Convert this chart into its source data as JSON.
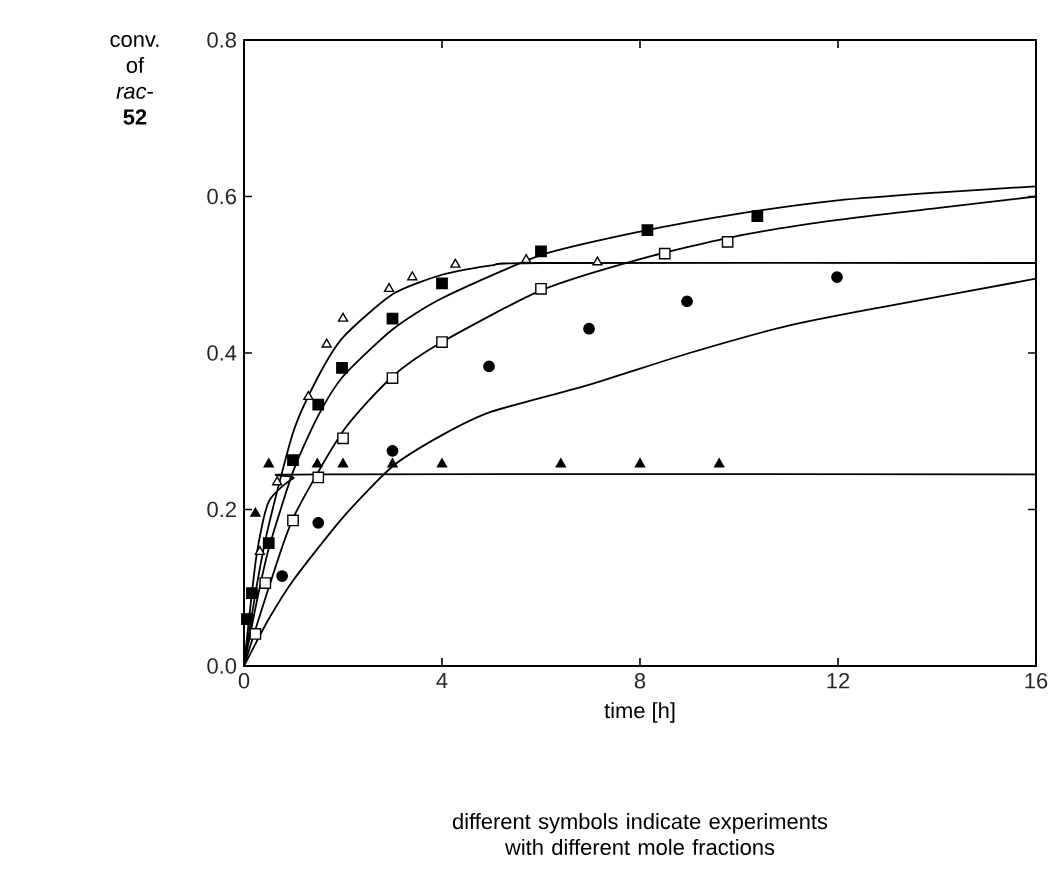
{
  "chart_data": {
    "type": "scatter",
    "ylabel": "conv. of *rac*-**52**",
    "xlabel": "time [h]",
    "annotations": [
      "different symbols indicate experiments with different mole fractions"
    ],
    "xlim": [
      0,
      16
    ],
    "xticks": [
      0,
      4,
      8,
      12,
      16
    ],
    "ylim": [
      0,
      0.8
    ],
    "yticks": [
      {
        "value": 0,
        "label": "0.0"
      },
      {
        "value": 0.2,
        "label": "0.2"
      },
      {
        "value": 0.4,
        "label": "0.4"
      },
      {
        "value": 0.6,
        "label": "0.6"
      },
      {
        "value": 0.8,
        "label": "0.8"
      }
    ],
    "grid": false,
    "series": [
      {
        "marker": "triangle",
        "color": "#ffffff",
        "x": [
          0.32,
          0.67,
          1.3,
          1.67,
          2.0,
          2.93,
          3.4,
          4.27,
          5.7,
          7.14
        ],
        "values": [
          0.146,
          0.235,
          0.344,
          0.411,
          0.444,
          0.482,
          0.497,
          0.513,
          0.519,
          0.516
        ]
      },
      {
        "marker": "square",
        "color": "#000000",
        "x": [
          0.06,
          0.16,
          0.5,
          0.99,
          1.5,
          1.98,
          3.0,
          4.0,
          6.0,
          8.15,
          10.37
        ],
        "values": [
          0.06,
          0.093,
          0.157,
          0.263,
          0.334,
          0.381,
          0.444,
          0.489,
          0.53,
          0.557,
          0.575
        ]
      },
      {
        "marker": "square",
        "color": "#ffffff",
        "x": [
          0.23,
          0.43,
          0.99,
          1.5,
          2.0,
          3.0,
          4.0,
          6.0,
          8.5,
          9.77
        ],
        "values": [
          0.041,
          0.106,
          0.186,
          0.241,
          0.291,
          0.368,
          0.414,
          0.482,
          0.527,
          0.542
        ]
      },
      {
        "marker": "circle",
        "color": "#000000",
        "x": [
          0.77,
          1.5,
          3.0,
          4.95,
          6.97,
          8.95,
          11.98
        ],
        "values": [
          0.115,
          0.183,
          0.275,
          0.383,
          0.431,
          0.466,
          0.497
        ]
      },
      {
        "marker": "triangle",
        "color": "#000000",
        "x": [
          0.23,
          0.5,
          1.48,
          2.0,
          3.0,
          4.0,
          6.4,
          8.0,
          9.6
        ],
        "values": [
          0.195,
          0.258,
          0.258,
          0.258,
          0.258,
          0.258,
          0.258,
          0.258,
          0.258
        ]
      },
      {
        "type": "line",
        "marker": "none",
        "color": "#000000",
        "x": [
          0,
          0.25,
          0.5,
          1,
          1.5,
          2,
          3,
          4,
          5,
          6,
          16
        ],
        "values": [
          0,
          0.1,
          0.18,
          0.3,
          0.37,
          0.42,
          0.475,
          0.5,
          0.512,
          0.515,
          0.515
        ]
      },
      {
        "type": "line",
        "marker": "none",
        "color": "#000000",
        "x": [
          0,
          0.25,
          0.5,
          1,
          1.5,
          2,
          3,
          4,
          6,
          8,
          10,
          12,
          14,
          16
        ],
        "values": [
          0,
          0.08,
          0.15,
          0.25,
          0.32,
          0.37,
          0.43,
          0.47,
          0.525,
          0.555,
          0.578,
          0.595,
          0.605,
          0.613
        ]
      },
      {
        "type": "line",
        "marker": "none",
        "color": "#000000",
        "x": [
          0,
          0.5,
          1,
          2,
          3,
          4,
          6,
          8,
          10,
          12,
          14,
          16
        ],
        "values": [
          0,
          0.1,
          0.19,
          0.3,
          0.37,
          0.414,
          0.48,
          0.52,
          0.55,
          0.57,
          0.585,
          0.6
        ]
      },
      {
        "type": "line",
        "marker": "none",
        "color": "#000000",
        "x": [
          0,
          0.5,
          1,
          2,
          3,
          4,
          5,
          7,
          9,
          11,
          13,
          16
        ],
        "values": [
          0,
          0.06,
          0.11,
          0.19,
          0.255,
          0.295,
          0.325,
          0.36,
          0.4,
          0.435,
          0.46,
          0.495
        ]
      },
      {
        "type": "line",
        "marker": "none",
        "color": "#000000",
        "x": [
          0,
          0.25,
          0.5,
          1,
          1.5,
          16
        ],
        "values": [
          0,
          0.14,
          0.21,
          0.24,
          0.245,
          0.245
        ]
      }
    ]
  }
}
